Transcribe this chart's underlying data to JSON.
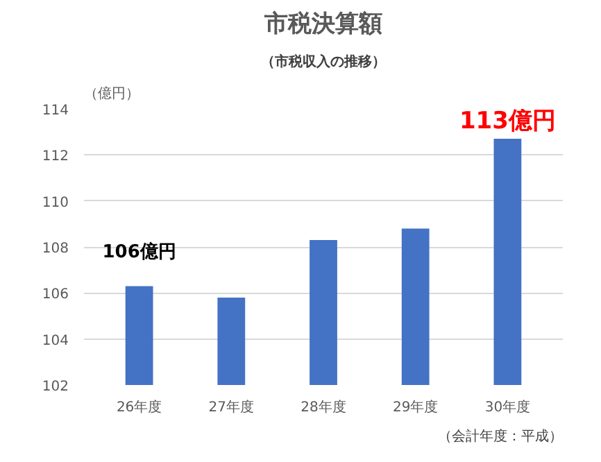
{
  "chart_data": {
    "type": "bar",
    "title": "市税決算額",
    "subtitle": "（市税収入の推移）",
    "ylabel": "（億円）",
    "xlabel": "（会計年度：平成）",
    "categories": [
      "26年度",
      "27年度",
      "28年度",
      "29年度",
      "30年度"
    ],
    "values": [
      106.3,
      105.8,
      108.3,
      108.8,
      112.7
    ],
    "color": "#4472c4",
    "ylim": [
      102,
      114
    ],
    "yticks": [
      102,
      104,
      106,
      108,
      110,
      112,
      114
    ],
    "grid": "y",
    "annotations": [
      "106億円",
      "113億円"
    ]
  }
}
